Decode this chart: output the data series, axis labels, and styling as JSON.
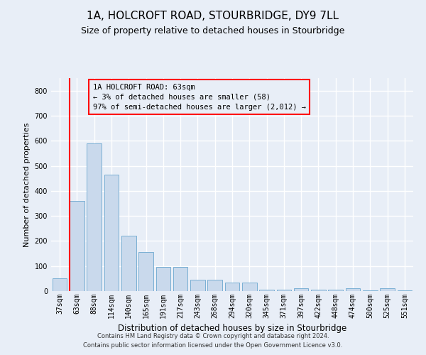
{
  "title": "1A, HOLCROFT ROAD, STOURBRIDGE, DY9 7LL",
  "subtitle": "Size of property relative to detached houses in Stourbridge",
  "xlabel": "Distribution of detached houses by size in Stourbridge",
  "ylabel": "Number of detached properties",
  "categories": [
    "37sqm",
    "63sqm",
    "88sqm",
    "114sqm",
    "140sqm",
    "165sqm",
    "191sqm",
    "217sqm",
    "243sqm",
    "268sqm",
    "294sqm",
    "320sqm",
    "345sqm",
    "371sqm",
    "397sqm",
    "422sqm",
    "448sqm",
    "474sqm",
    "500sqm",
    "525sqm",
    "551sqm"
  ],
  "values": [
    50,
    360,
    590,
    465,
    220,
    155,
    95,
    95,
    45,
    45,
    35,
    35,
    5,
    5,
    10,
    5,
    5,
    10,
    3,
    10,
    3
  ],
  "bar_color": "#c9d9ec",
  "bar_edge_color": "#7aafd4",
  "red_line_index": 1,
  "ylim": [
    0,
    850
  ],
  "yticks": [
    0,
    100,
    200,
    300,
    400,
    500,
    600,
    700,
    800
  ],
  "annotation_title": "1A HOLCROFT ROAD: 63sqm",
  "annotation_line1": "← 3% of detached houses are smaller (58)",
  "annotation_line2": "97% of semi-detached houses are larger (2,012) →",
  "footer1": "Contains HM Land Registry data © Crown copyright and database right 2024.",
  "footer2": "Contains public sector information licensed under the Open Government Licence v3.0.",
  "background_color": "#e8eef7",
  "plot_bg_color": "#e8eef7",
  "grid_color": "#ffffff",
  "title_fontsize": 11,
  "subtitle_fontsize": 9,
  "ylabel_fontsize": 8,
  "xlabel_fontsize": 8.5,
  "tick_fontsize": 7,
  "annotation_fontsize": 7.5,
  "footer_fontsize": 6
}
